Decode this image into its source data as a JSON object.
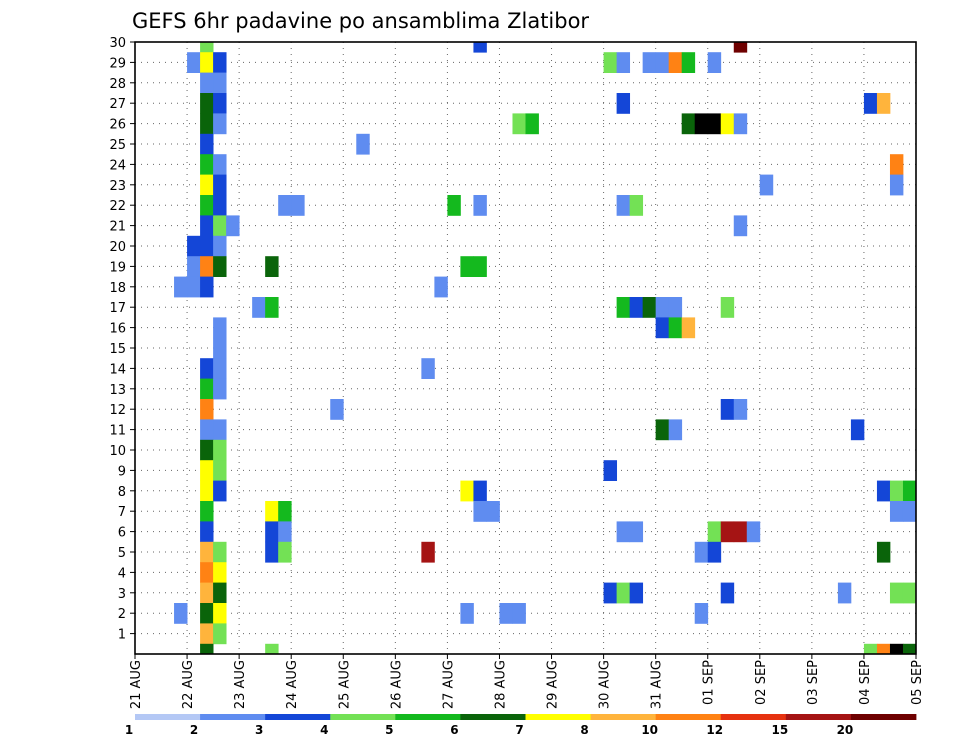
{
  "chart_data": {
    "type": "heatmap",
    "title": "GEFS 6hr padavine po ansamblima Zlatibor",
    "x_tick_labels": [
      "21 AUG",
      "22 AUG",
      "23 AUG",
      "24 AUG",
      "25 AUG",
      "26 AUG",
      "27 AUG",
      "28 AUG",
      "29 AUG",
      "30 AUG",
      "31 AUG",
      "01 SEP",
      "02 SEP",
      "03 SEP",
      "04 SEP",
      "05 SEP"
    ],
    "y_tick_labels": [
      1,
      2,
      3,
      4,
      5,
      6,
      7,
      8,
      9,
      10,
      11,
      12,
      13,
      14,
      15,
      16,
      17,
      18,
      19,
      20,
      21,
      22,
      23,
      24,
      25,
      26,
      27,
      28,
      29,
      30
    ],
    "xlim_days": [
      0,
      15
    ],
    "ylim": [
      0,
      30
    ],
    "grid": true,
    "colorbar": {
      "labels": [
        "1",
        "2",
        "3",
        "4",
        "5",
        "6",
        "7",
        "8",
        "10",
        "12",
        "15",
        "20"
      ],
      "colors": [
        "#b4c8f5",
        "#5f8cf0",
        "#1446d7",
        "#73e155",
        "#14b91e",
        "#0a640a",
        "#ffff00",
        "#ffb43c",
        "#ff8214",
        "#e6320f",
        "#a51414",
        "#6e0000"
      ]
    },
    "cells": [
      [
        1.25,
        30,
        3
      ],
      [
        6.5,
        30,
        2
      ],
      [
        11.5,
        30,
        11
      ],
      [
        1.0,
        29,
        1
      ],
      [
        1.25,
        29,
        6
      ],
      [
        1.5,
        29,
        2
      ],
      [
        9.0,
        29,
        3
      ],
      [
        9.25,
        29,
        1
      ],
      [
        9.75,
        29,
        1
      ],
      [
        10.0,
        29,
        1
      ],
      [
        10.25,
        29,
        8
      ],
      [
        10.5,
        29,
        4
      ],
      [
        11.0,
        29,
        1
      ],
      [
        1.25,
        28,
        1
      ],
      [
        1.5,
        28,
        1
      ],
      [
        1.25,
        27,
        5
      ],
      [
        1.5,
        27,
        2
      ],
      [
        9.25,
        27,
        2
      ],
      [
        14.0,
        27,
        2
      ],
      [
        14.25,
        27,
        7
      ],
      [
        1.25,
        26,
        5
      ],
      [
        1.5,
        26,
        1
      ],
      [
        7.25,
        26,
        3
      ],
      [
        7.5,
        26,
        4
      ],
      [
        10.5,
        26,
        5
      ],
      [
        10.75,
        26,
        12
      ],
      [
        11.0,
        26,
        12
      ],
      [
        11.25,
        26,
        6
      ],
      [
        11.5,
        26,
        1
      ],
      [
        1.25,
        25,
        2
      ],
      [
        4.25,
        25,
        1
      ],
      [
        1.25,
        24,
        4
      ],
      [
        1.5,
        24,
        1
      ],
      [
        14.5,
        24,
        8
      ],
      [
        1.25,
        23,
        6
      ],
      [
        1.5,
        23,
        2
      ],
      [
        12.0,
        23,
        1
      ],
      [
        14.5,
        23,
        1
      ],
      [
        1.25,
        22,
        4
      ],
      [
        1.5,
        22,
        2
      ],
      [
        2.75,
        22,
        1
      ],
      [
        3.0,
        22,
        1
      ],
      [
        6.0,
        22,
        4
      ],
      [
        6.5,
        22,
        1
      ],
      [
        9.25,
        22,
        1
      ],
      [
        9.5,
        22,
        3
      ],
      [
        1.25,
        21,
        2
      ],
      [
        1.5,
        21,
        3
      ],
      [
        1.75,
        21,
        1
      ],
      [
        11.5,
        21,
        1
      ],
      [
        1.0,
        20,
        2
      ],
      [
        1.25,
        20,
        2
      ],
      [
        1.5,
        20,
        1
      ],
      [
        1.0,
        19,
        1
      ],
      [
        1.25,
        19,
        8
      ],
      [
        1.5,
        19,
        5
      ],
      [
        2.5,
        19,
        5
      ],
      [
        6.25,
        19,
        4
      ],
      [
        6.5,
        19,
        4
      ],
      [
        0.75,
        18,
        1
      ],
      [
        1.0,
        18,
        1
      ],
      [
        1.25,
        18,
        2
      ],
      [
        5.75,
        18,
        1
      ],
      [
        2.25,
        17,
        1
      ],
      [
        2.5,
        17,
        4
      ],
      [
        9.25,
        17,
        4
      ],
      [
        9.5,
        17,
        2
      ],
      [
        9.75,
        17,
        5
      ],
      [
        10.0,
        17,
        1
      ],
      [
        10.25,
        17,
        1
      ],
      [
        11.25,
        17,
        3
      ],
      [
        1.5,
        16,
        1
      ],
      [
        10.0,
        16,
        2
      ],
      [
        10.25,
        16,
        4
      ],
      [
        10.5,
        16,
        7
      ],
      [
        1.5,
        15,
        1
      ],
      [
        1.25,
        14,
        2
      ],
      [
        1.5,
        14,
        1
      ],
      [
        5.5,
        14,
        1
      ],
      [
        1.25,
        13,
        4
      ],
      [
        1.5,
        13,
        1
      ],
      [
        1.25,
        12,
        8
      ],
      [
        3.75,
        12,
        1
      ],
      [
        11.25,
        12,
        2
      ],
      [
        11.5,
        12,
        1
      ],
      [
        1.25,
        11,
        1
      ],
      [
        1.5,
        11,
        1
      ],
      [
        10.0,
        11,
        5
      ],
      [
        10.25,
        11,
        1
      ],
      [
        13.75,
        11,
        2
      ],
      [
        1.25,
        10,
        5
      ],
      [
        1.5,
        10,
        3
      ],
      [
        1.25,
        9,
        6
      ],
      [
        1.5,
        9,
        3
      ],
      [
        9.0,
        9,
        2
      ],
      [
        1.25,
        8,
        6
      ],
      [
        1.5,
        8,
        2
      ],
      [
        6.25,
        8,
        6
      ],
      [
        6.5,
        8,
        2
      ],
      [
        14.25,
        8,
        2
      ],
      [
        14.5,
        8,
        3
      ],
      [
        14.75,
        8,
        4
      ],
      [
        1.25,
        7,
        4
      ],
      [
        2.5,
        7,
        6
      ],
      [
        2.75,
        7,
        4
      ],
      [
        6.5,
        7,
        1
      ],
      [
        6.75,
        7,
        1
      ],
      [
        14.5,
        7,
        1
      ],
      [
        14.75,
        7,
        1
      ],
      [
        1.25,
        6,
        2
      ],
      [
        2.5,
        6,
        2
      ],
      [
        2.75,
        6,
        1
      ],
      [
        9.25,
        6,
        1
      ],
      [
        9.5,
        6,
        1
      ],
      [
        11.0,
        6,
        3
      ],
      [
        11.25,
        6,
        10
      ],
      [
        11.5,
        6,
        10
      ],
      [
        11.75,
        6,
        1
      ],
      [
        1.25,
        5,
        7
      ],
      [
        1.5,
        5,
        3
      ],
      [
        2.5,
        5,
        2
      ],
      [
        2.75,
        5,
        3
      ],
      [
        5.5,
        5,
        10
      ],
      [
        10.75,
        5,
        1
      ],
      [
        11.0,
        5,
        2
      ],
      [
        14.25,
        5,
        5
      ],
      [
        1.25,
        4,
        8
      ],
      [
        1.5,
        4,
        6
      ],
      [
        1.25,
        3,
        7
      ],
      [
        1.5,
        3,
        5
      ],
      [
        9.0,
        3,
        2
      ],
      [
        9.25,
        3,
        3
      ],
      [
        9.5,
        3,
        2
      ],
      [
        11.25,
        3,
        2
      ],
      [
        13.5,
        3,
        1
      ],
      [
        14.5,
        3,
        3
      ],
      [
        14.75,
        3,
        3
      ],
      [
        0.75,
        2,
        1
      ],
      [
        1.25,
        2,
        5
      ],
      [
        1.5,
        2,
        6
      ],
      [
        6.25,
        2,
        1
      ],
      [
        7.0,
        2,
        1
      ],
      [
        7.25,
        2,
        1
      ],
      [
        10.75,
        2,
        1
      ],
      [
        1.25,
        1,
        7
      ],
      [
        1.5,
        1,
        3
      ],
      [
        1.25,
        0,
        5
      ],
      [
        2.5,
        0,
        3
      ],
      [
        14.0,
        0,
        3
      ],
      [
        14.25,
        0,
        8
      ],
      [
        14.5,
        0,
        12
      ],
      [
        14.75,
        0,
        5
      ]
    ]
  }
}
